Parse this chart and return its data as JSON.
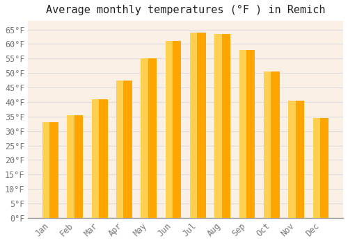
{
  "title": "Average monthly temperatures (°F ) in Remich",
  "months": [
    "Jan",
    "Feb",
    "Mar",
    "Apr",
    "May",
    "Jun",
    "Jul",
    "Aug",
    "Sep",
    "Oct",
    "Nov",
    "Dec"
  ],
  "values": [
    33.0,
    35.5,
    41.0,
    47.5,
    55.0,
    61.0,
    64.0,
    63.5,
    58.0,
    50.5,
    40.5,
    34.5
  ],
  "bar_color_main": "#FFA500",
  "bar_color_light": "#FFD050",
  "background_color": "#FFFFFF",
  "plot_bg_color": "#FAF0E6",
  "grid_color": "#DDDDDD",
  "yticks": [
    0,
    5,
    10,
    15,
    20,
    25,
    30,
    35,
    40,
    45,
    50,
    55,
    60,
    65
  ],
  "ylim": [
    0,
    68
  ],
  "title_fontsize": 11,
  "tick_fontsize": 8.5,
  "font_family": "monospace"
}
